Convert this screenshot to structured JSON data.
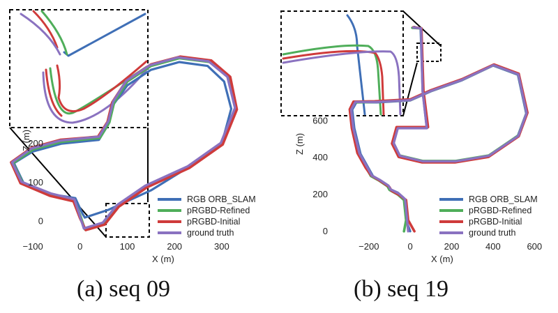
{
  "colors": {
    "rgb_orb_slam": "#3f6fb6",
    "prgbd_refined": "#4fae5a",
    "prgbd_initial": "#cf3b3b",
    "ground_truth": "#8a72c0"
  },
  "chart_data": [
    {
      "type": "line",
      "caption": "(a) seq 09",
      "xlabel": "X (m)",
      "ylabel": "Z (m)",
      "xlim": [
        -140,
        340
      ],
      "ylim": [
        -40,
        480
      ],
      "xticks": [
        -100,
        0,
        100,
        200,
        300
      ],
      "xtick_labels": [
        "−100",
        "0",
        "100",
        "200",
        "300"
      ],
      "yticks": [
        0,
        100,
        200
      ],
      "ytick_labels": [
        "0",
        "100",
        "200"
      ],
      "legend_position": "bottom-right",
      "inset": "zoomed view of start region (upper-left)",
      "series": [
        {
          "name": "RGB ORB_SLAM",
          "color_key": "rgb_orb_slam",
          "points": [
            [
              10,
              10
            ],
            [
              60,
              30
            ],
            [
              150,
              80
            ],
            [
              230,
              140
            ],
            [
              300,
              200
            ],
            [
              320,
              290
            ],
            [
              305,
              360
            ],
            [
              270,
              400
            ],
            [
              210,
              410
            ],
            [
              150,
              390
            ],
            [
              100,
              350
            ],
            [
              70,
              300
            ],
            [
              60,
              250
            ],
            [
              40,
              210
            ],
            [
              -40,
              200
            ],
            [
              -100,
              180
            ],
            [
              -140,
              150
            ],
            [
              -120,
              100
            ],
            [
              -60,
              70
            ],
            [
              -10,
              60
            ],
            [
              5,
              20
            ],
            [
              10,
              10
            ]
          ]
        },
        {
          "name": "pRGBD-Refined",
          "color_key": "prgbd_refined",
          "points": [
            [
              10,
              -20
            ],
            [
              50,
              -5
            ],
            [
              80,
              40
            ],
            [
              140,
              90
            ],
            [
              230,
              140
            ],
            [
              300,
              200
            ],
            [
              330,
              290
            ],
            [
              315,
              370
            ],
            [
              275,
              410
            ],
            [
              210,
              420
            ],
            [
              150,
              400
            ],
            [
              100,
              360
            ],
            [
              72,
              305
            ],
            [
              62,
              255
            ],
            [
              42,
              215
            ],
            [
              -40,
              205
            ],
            [
              -100,
              185
            ],
            [
              -142,
              150
            ],
            [
              -122,
              100
            ],
            [
              -62,
              70
            ],
            [
              -12,
              55
            ],
            [
              2,
              10
            ],
            [
              10,
              -20
            ]
          ]
        },
        {
          "name": "pRGBD-Initial",
          "color_key": "prgbd_initial",
          "points": [
            [
              12,
              -22
            ],
            [
              52,
              -8
            ],
            [
              82,
              38
            ],
            [
              142,
              88
            ],
            [
              232,
              138
            ],
            [
              302,
              198
            ],
            [
              332,
              288
            ],
            [
              318,
              372
            ],
            [
              278,
              414
            ],
            [
              212,
              424
            ],
            [
              150,
              404
            ],
            [
              98,
              362
            ],
            [
              68,
              306
            ],
            [
              58,
              256
            ],
            [
              38,
              218
            ],
            [
              -42,
              210
            ],
            [
              -102,
              190
            ],
            [
              -146,
              152
            ],
            [
              -126,
              98
            ],
            [
              -64,
              66
            ],
            [
              -14,
              52
            ],
            [
              0,
              8
            ],
            [
              12,
              -22
            ]
          ]
        },
        {
          "name": "ground truth",
          "color_key": "ground_truth",
          "points": [
            [
              8,
              -18
            ],
            [
              48,
              -3
            ],
            [
              78,
              42
            ],
            [
              138,
              92
            ],
            [
              228,
              142
            ],
            [
              298,
              202
            ],
            [
              328,
              292
            ],
            [
              312,
              372
            ],
            [
              272,
              412
            ],
            [
              208,
              422
            ],
            [
              148,
              402
            ],
            [
              98,
              362
            ],
            [
              70,
              308
            ],
            [
              60,
              258
            ],
            [
              40,
              218
            ],
            [
              -42,
              208
            ],
            [
              -102,
              188
            ],
            [
              -144,
              152
            ],
            [
              -124,
              102
            ],
            [
              -62,
              72
            ],
            [
              -12,
              57
            ],
            [
              0,
              12
            ],
            [
              8,
              -18
            ]
          ]
        }
      ]
    },
    {
      "type": "line",
      "caption": "(b) seq 19",
      "xlabel": "X (m)",
      "ylabel": "Z (m)",
      "xlim": [
        -280,
        680
      ],
      "ylim": [
        -50,
        1150
      ],
      "xticks": [
        -200,
        0,
        200,
        400,
        600
      ],
      "xtick_labels": [
        "−200",
        "0",
        "200",
        "400",
        "600"
      ],
      "yticks": [
        0,
        200,
        400,
        600
      ],
      "ytick_labels": [
        "0",
        "200",
        "400",
        "600"
      ],
      "legend_position": "bottom-right",
      "inset": "zoomed view of top region (upper-left)",
      "series": [
        {
          "name": "RGB ORB_SLAM",
          "color_key": "rgb_orb_slam",
          "points": [
            [
              0,
              0
            ],
            [
              -20,
              60
            ],
            [
              -30,
              180
            ],
            [
              -60,
              210
            ],
            [
              -100,
              230
            ],
            [
              -110,
              250
            ],
            [
              -150,
              280
            ],
            [
              -180,
              300
            ],
            [
              -200,
              340
            ],
            [
              -240,
              420
            ],
            [
              -270,
              560
            ],
            [
              -280,
              660
            ],
            [
              -260,
              700
            ],
            [
              -160,
              700
            ],
            [
              0,
              710
            ],
            [
              100,
              760
            ],
            [
              250,
              820
            ],
            [
              400,
              900
            ],
            [
              520,
              850
            ],
            [
              560,
              640
            ],
            [
              520,
              520
            ],
            [
              380,
              410
            ],
            [
              220,
              380
            ],
            [
              60,
              380
            ],
            [
              -50,
              410
            ],
            [
              -80,
              480
            ],
            [
              -60,
              560
            ],
            [
              80,
              560
            ],
            [
              60,
              760
            ],
            [
              50,
              1100
            ],
            [
              20,
              1110
            ]
          ]
        },
        {
          "name": "pRGBD-Refined",
          "color_key": "prgbd_refined",
          "points": [
            [
              -30,
              0
            ],
            [
              -20,
              60
            ],
            [
              -30,
              170
            ],
            [
              -60,
              200
            ],
            [
              -100,
              225
            ],
            [
              -110,
              245
            ],
            [
              -150,
              275
            ],
            [
              -190,
              300
            ],
            [
              -210,
              340
            ],
            [
              -250,
              420
            ],
            [
              -278,
              560
            ],
            [
              -288,
              660
            ],
            [
              -270,
              700
            ],
            [
              -170,
              702
            ],
            [
              0,
              712
            ],
            [
              100,
              762
            ],
            [
              250,
              822
            ],
            [
              402,
              902
            ],
            [
              522,
              852
            ],
            [
              562,
              642
            ],
            [
              522,
              520
            ],
            [
              380,
              412
            ],
            [
              220,
              382
            ],
            [
              60,
              382
            ],
            [
              -52,
              412
            ],
            [
              -82,
              480
            ],
            [
              -62,
              562
            ],
            [
              82,
              562
            ],
            [
              62,
              762
            ],
            [
              52,
              1102
            ],
            [
              10,
              1105
            ]
          ]
        },
        {
          "name": "pRGBD-Initial",
          "color_key": "prgbd_initial",
          "points": [
            [
              20,
              0
            ],
            [
              -10,
              60
            ],
            [
              -20,
              170
            ],
            [
              -50,
              195
            ],
            [
              -90,
              220
            ],
            [
              -100,
              240
            ],
            [
              -140,
              270
            ],
            [
              -190,
              305
            ],
            [
              -215,
              345
            ],
            [
              -255,
              425
            ],
            [
              -282,
              560
            ],
            [
              -292,
              662
            ],
            [
              -274,
              704
            ],
            [
              -172,
              706
            ],
            [
              0,
              716
            ],
            [
              100,
              766
            ],
            [
              250,
              826
            ],
            [
              404,
              906
            ],
            [
              524,
              856
            ],
            [
              566,
              644
            ],
            [
              524,
              516
            ],
            [
              378,
              404
            ],
            [
              216,
              374
            ],
            [
              58,
              374
            ],
            [
              -56,
              404
            ],
            [
              -88,
              476
            ],
            [
              -66,
              566
            ],
            [
              86,
              566
            ],
            [
              64,
              764
            ],
            [
              54,
              1102
            ],
            [
              15,
              1108
            ]
          ]
        },
        {
          "name": "ground truth",
          "color_key": "ground_truth",
          "points": [
            [
              -10,
              0
            ],
            [
              -15,
              60
            ],
            [
              -25,
              175
            ],
            [
              -55,
              205
            ],
            [
              -95,
              228
            ],
            [
              -105,
              248
            ],
            [
              -145,
              278
            ],
            [
              -185,
              302
            ],
            [
              -205,
              342
            ],
            [
              -245,
              422
            ],
            [
              -275,
              560
            ],
            [
              -285,
              660
            ],
            [
              -265,
              702
            ],
            [
              -165,
              702
            ],
            [
              0,
              712
            ],
            [
              100,
              762
            ],
            [
              250,
              822
            ],
            [
              402,
              902
            ],
            [
              522,
              852
            ],
            [
              562,
              642
            ],
            [
              522,
              518
            ],
            [
              380,
              410
            ],
            [
              220,
              380
            ],
            [
              60,
              380
            ],
            [
              -50,
              410
            ],
            [
              -80,
              478
            ],
            [
              -60,
              560
            ],
            [
              80,
              560
            ],
            [
              60,
              760
            ],
            [
              52,
              1102
            ],
            [
              15,
              1106
            ]
          ]
        }
      ]
    }
  ]
}
